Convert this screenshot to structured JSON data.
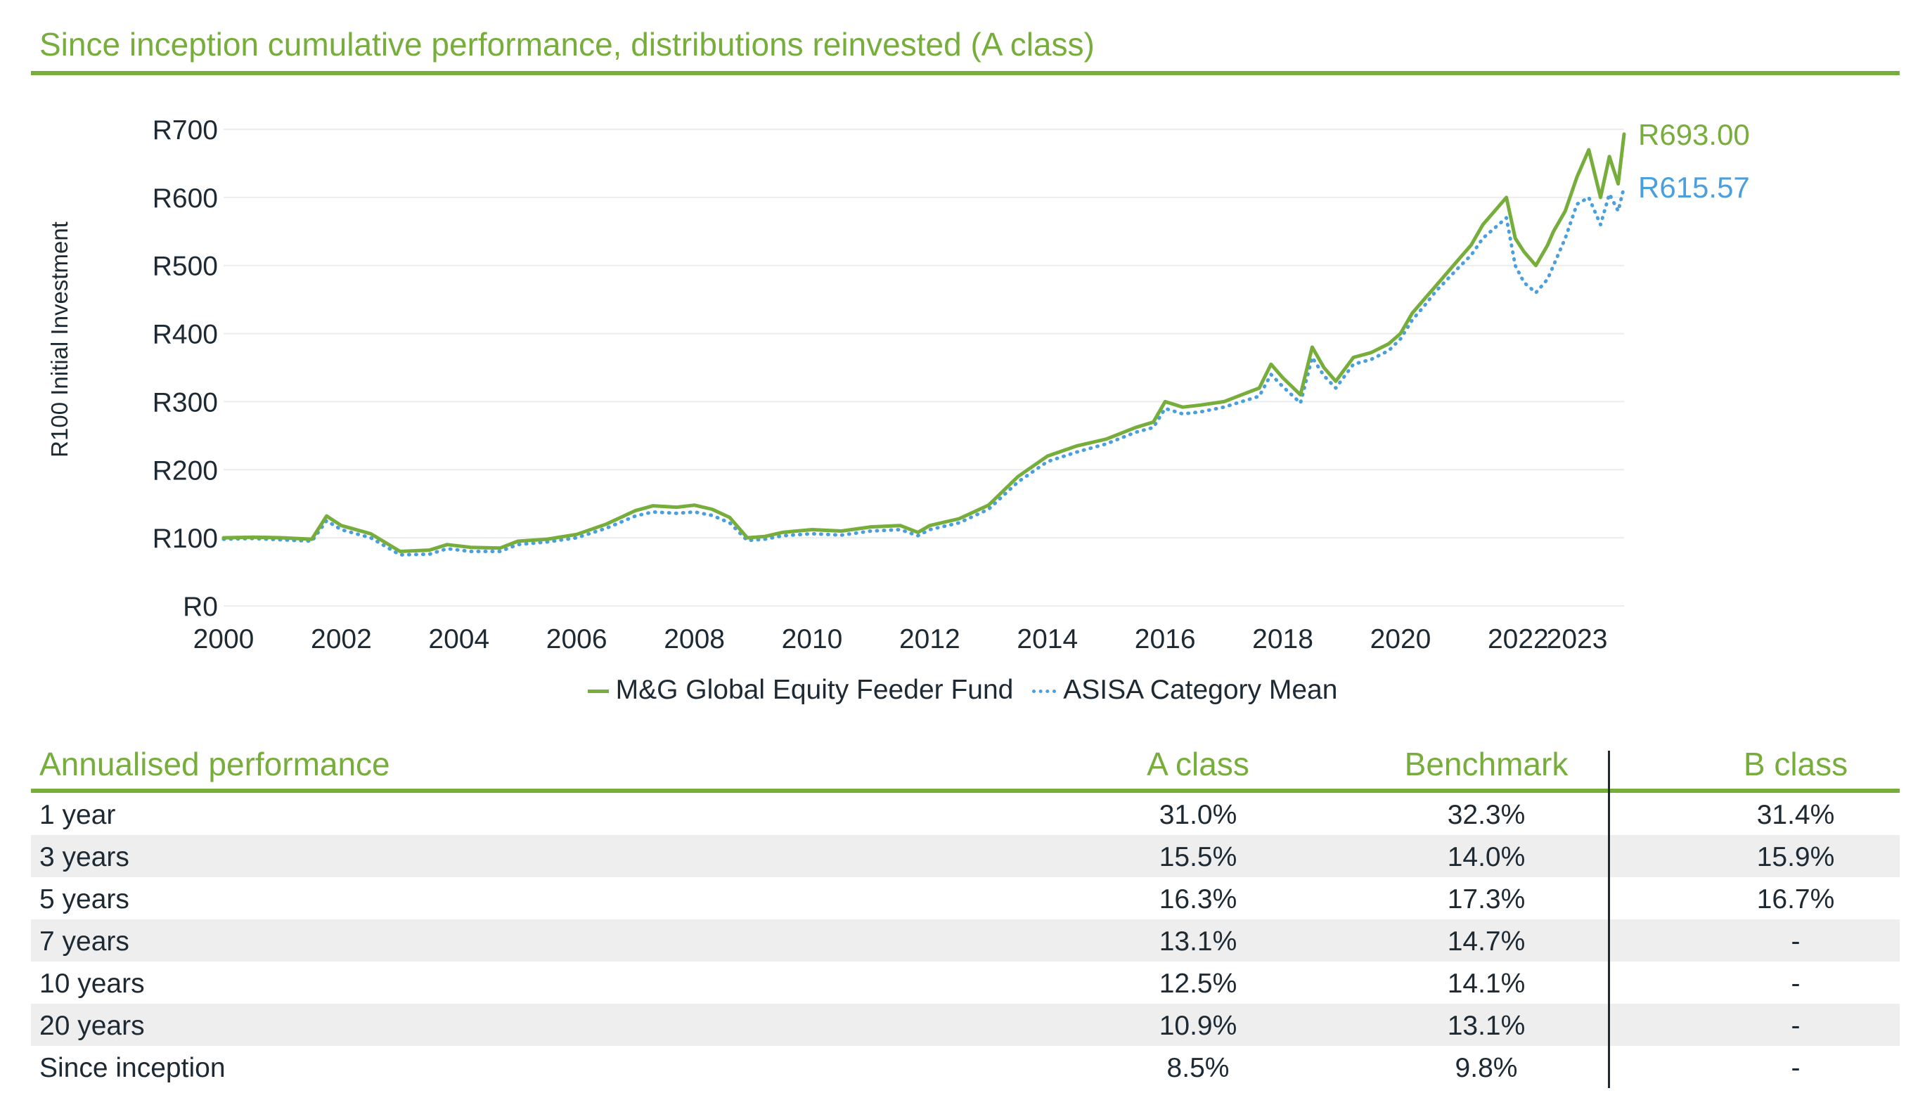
{
  "title": "Since inception cumulative performance, distributions reinvested (A class)",
  "chart_data": {
    "type": "line",
    "ylabel": "R100 Initial Investment",
    "ylim": [
      0,
      700
    ],
    "yticks": [
      "R0",
      "R100",
      "R200",
      "R300",
      "R400",
      "R500",
      "R600",
      "R700"
    ],
    "xlim": [
      2000,
      2023.8
    ],
    "xticks": [
      "2000",
      "2002",
      "2004",
      "2006",
      "2008",
      "2010",
      "2012",
      "2014",
      "2016",
      "2018",
      "2020",
      "2022",
      "2023"
    ],
    "grid": "horizontal",
    "legend_position": "bottom",
    "series": [
      {
        "name": "M&G Global Equity Feeder Fund",
        "color": "#76ad3b",
        "style": "solid",
        "end_label": "R693.00",
        "x": [
          2000,
          2000.5,
          2001.0,
          2001.5,
          2001.75,
          2002.0,
          2002.5,
          2003.0,
          2003.5,
          2003.8,
          2004.2,
          2004.7,
          2005.0,
          2005.5,
          2006.0,
          2006.5,
          2007.0,
          2007.3,
          2007.7,
          2008.0,
          2008.3,
          2008.6,
          2008.9,
          2009.2,
          2009.5,
          2010.0,
          2010.5,
          2011.0,
          2011.5,
          2011.8,
          2012.0,
          2012.5,
          2013.0,
          2013.5,
          2014.0,
          2014.5,
          2015.0,
          2015.5,
          2015.8,
          2016.0,
          2016.3,
          2016.6,
          2017.0,
          2017.3,
          2017.6,
          2017.8,
          2018.0,
          2018.3,
          2018.5,
          2018.7,
          2018.9,
          2019.2,
          2019.5,
          2019.8,
          2020.0,
          2020.2,
          2020.4,
          2020.6,
          2020.8,
          2021.0,
          2021.2,
          2021.4,
          2021.6,
          2021.8,
          2021.95,
          2022.1,
          2022.3,
          2022.5,
          2022.6,
          2022.8,
          2023.0,
          2023.2,
          2023.4,
          2023.55,
          2023.7,
          2023.8
        ],
        "values": [
          100,
          101,
          100,
          98,
          132,
          118,
          106,
          80,
          82,
          90,
          86,
          85,
          95,
          98,
          105,
          120,
          140,
          147,
          145,
          148,
          142,
          130,
          100,
          102,
          108,
          112,
          110,
          116,
          118,
          108,
          118,
          128,
          148,
          190,
          220,
          235,
          245,
          262,
          270,
          300,
          292,
          295,
          300,
          310,
          320,
          355,
          335,
          310,
          380,
          350,
          330,
          365,
          372,
          385,
          400,
          430,
          450,
          470,
          490,
          510,
          530,
          560,
          580,
          600,
          540,
          520,
          500,
          530,
          550,
          580,
          630,
          670,
          600,
          660,
          620,
          693
        ]
      },
      {
        "name": "ASISA Category Mean",
        "color": "#4a9fdc",
        "style": "dotted",
        "end_label": "R615.57",
        "x": [
          2000,
          2000.5,
          2001.0,
          2001.5,
          2001.75,
          2002.0,
          2002.5,
          2003.0,
          2003.5,
          2003.8,
          2004.2,
          2004.7,
          2005.0,
          2005.5,
          2006.0,
          2006.5,
          2007.0,
          2007.3,
          2007.7,
          2008.0,
          2008.3,
          2008.6,
          2008.9,
          2009.2,
          2009.5,
          2010.0,
          2010.5,
          2011.0,
          2011.5,
          2011.8,
          2012.0,
          2012.5,
          2013.0,
          2013.5,
          2014.0,
          2014.5,
          2015.0,
          2015.5,
          2015.8,
          2016.0,
          2016.3,
          2016.6,
          2017.0,
          2017.3,
          2017.6,
          2017.8,
          2018.0,
          2018.3,
          2018.5,
          2018.7,
          2018.9,
          2019.2,
          2019.5,
          2019.8,
          2020.0,
          2020.2,
          2020.4,
          2020.6,
          2020.8,
          2021.0,
          2021.2,
          2021.4,
          2021.6,
          2021.8,
          2021.95,
          2022.1,
          2022.3,
          2022.5,
          2022.6,
          2022.8,
          2023.0,
          2023.2,
          2023.4,
          2023.55,
          2023.7,
          2023.8
        ],
        "values": [
          98,
          99,
          97,
          95,
          125,
          112,
          100,
          75,
          76,
          84,
          80,
          80,
          90,
          94,
          100,
          114,
          132,
          138,
          136,
          138,
          133,
          122,
          96,
          98,
          103,
          106,
          104,
          110,
          112,
          103,
          112,
          122,
          142,
          182,
          212,
          226,
          238,
          255,
          262,
          290,
          282,
          285,
          292,
          300,
          308,
          340,
          322,
          298,
          365,
          338,
          320,
          355,
          362,
          375,
          392,
          420,
          440,
          462,
          480,
          498,
          515,
          540,
          555,
          570,
          500,
          475,
          460,
          480,
          500,
          540,
          590,
          600,
          560,
          605,
          580,
          615.57
        ]
      }
    ]
  },
  "table": {
    "title": "Annualised performance",
    "headers": [
      "A class",
      "Benchmark",
      "B class"
    ],
    "rows": [
      {
        "period": "1 year",
        "a": "31.0%",
        "bench": "32.3%",
        "b": "31.4%"
      },
      {
        "period": "3 years",
        "a": "15.5%",
        "bench": "14.0%",
        "b": "15.9%"
      },
      {
        "period": "5 years",
        "a": "16.3%",
        "bench": "17.3%",
        "b": "16.7%"
      },
      {
        "period": "7 years",
        "a": "13.1%",
        "bench": "14.7%",
        "b": "-"
      },
      {
        "period": "10 years",
        "a": "12.5%",
        "bench": "14.1%",
        "b": "-"
      },
      {
        "period": "20 years",
        "a": "10.9%",
        "bench": "13.1%",
        "b": "-"
      },
      {
        "period": "Since inception",
        "a": "8.5%",
        "bench": "9.8%",
        "b": "-"
      }
    ]
  }
}
